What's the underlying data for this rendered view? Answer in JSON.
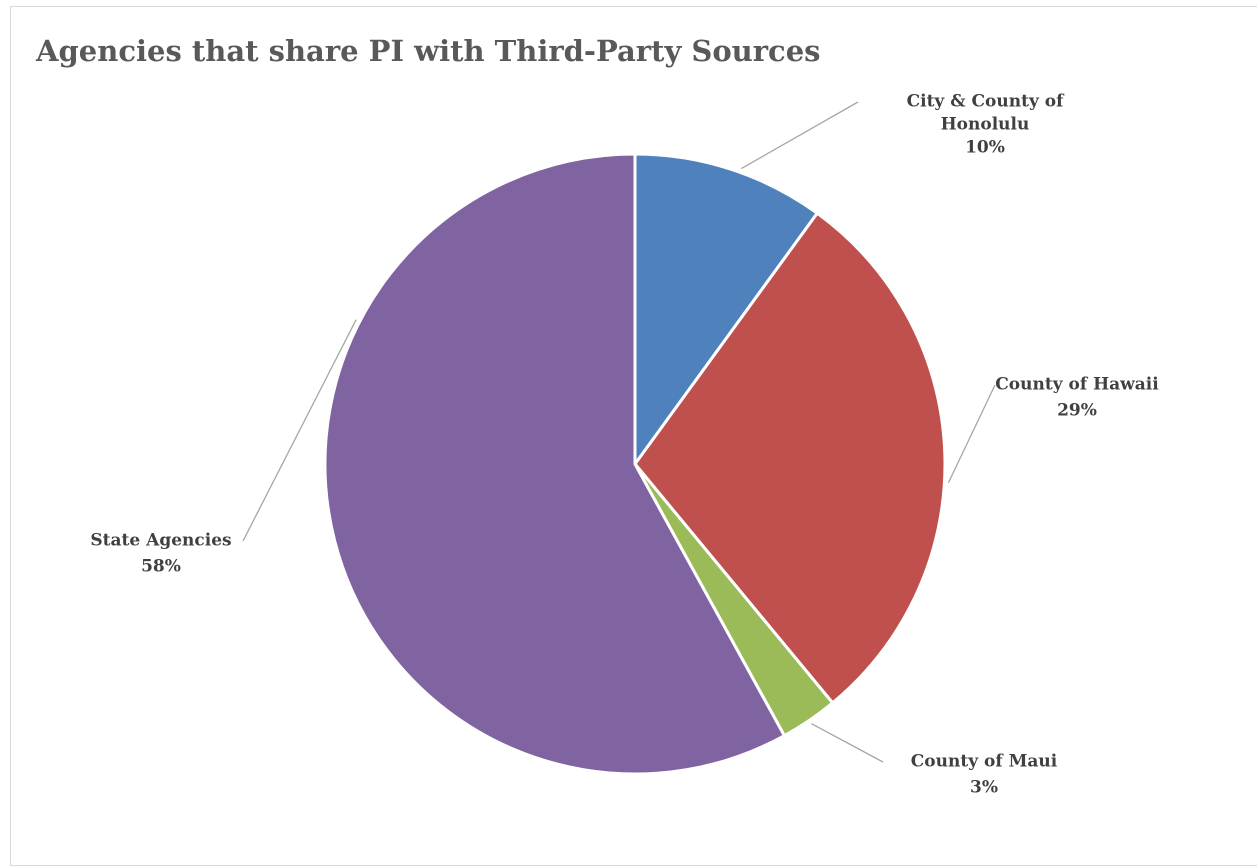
{
  "chart_data": {
    "type": "pie",
    "title": "Agencies that share PI with Third-Party Sources",
    "slices": [
      {
        "label_lines": [
          "City & County of",
          "Honolulu"
        ],
        "value": 10,
        "value_label": "10%",
        "color": "#4F81BD"
      },
      {
        "label_lines": [
          "County of Hawaii"
        ],
        "value": 29,
        "value_label": "29%",
        "color": "#C0504D"
      },
      {
        "label_lines": [
          "County of Maui"
        ],
        "value": 3,
        "value_label": "3%",
        "color": "#9BBB59"
      },
      {
        "label_lines": [
          "State Agencies"
        ],
        "value": 58,
        "value_label": "58%",
        "color": "#8064A2"
      }
    ],
    "legend": "none",
    "label_style": "outside with leader lines"
  }
}
